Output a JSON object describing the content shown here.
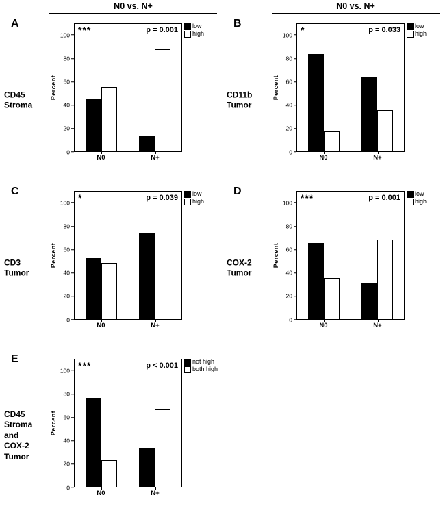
{
  "figure": {
    "column_titles": [
      "N0 vs. N+",
      "N0 vs. N+"
    ]
  },
  "chart_data": [
    {
      "type": "bar",
      "panel_label": "A",
      "row_label": "CD45\nStroma",
      "significance": "***",
      "p_value": "p = 0.001",
      "ylabel": "Percent",
      "ylim": [
        0,
        110
      ],
      "yticks": [
        0,
        20,
        40,
        60,
        80,
        100
      ],
      "categories": [
        "N0",
        "N+"
      ],
      "series": [
        {
          "name": "low",
          "color": "#000000",
          "values": [
            45,
            13
          ]
        },
        {
          "name": "high",
          "color": "#ffffff",
          "values": [
            55,
            87
          ]
        }
      ],
      "legend_position": "right-top",
      "grid": false
    },
    {
      "type": "bar",
      "panel_label": "B",
      "row_label": "CD11b\nTumor",
      "significance": "*",
      "p_value": "p = 0.033",
      "ylabel": "Percent",
      "ylim": [
        0,
        110
      ],
      "yticks": [
        0,
        20,
        40,
        60,
        80,
        100
      ],
      "categories": [
        "N0",
        "N+"
      ],
      "series": [
        {
          "name": "low",
          "color": "#000000",
          "values": [
            83,
            64
          ]
        },
        {
          "name": "high",
          "color": "#ffffff",
          "values": [
            17,
            35
          ]
        }
      ],
      "legend_position": "right-top",
      "grid": false
    },
    {
      "type": "bar",
      "panel_label": "C",
      "row_label": "CD3\nTumor",
      "significance": "*",
      "p_value": "p = 0.039",
      "ylabel": "Percent",
      "ylim": [
        0,
        110
      ],
      "yticks": [
        0,
        20,
        40,
        60,
        80,
        100
      ],
      "categories": [
        "N0",
        "N+"
      ],
      "series": [
        {
          "name": "low",
          "color": "#000000",
          "values": [
            52,
            73
          ]
        },
        {
          "name": "high",
          "color": "#ffffff",
          "values": [
            48,
            27
          ]
        }
      ],
      "legend_position": "right-top",
      "grid": false
    },
    {
      "type": "bar",
      "panel_label": "D",
      "row_label": "COX-2\nTumor",
      "significance": "***",
      "p_value": "p = 0.001",
      "ylabel": "Percent",
      "ylim": [
        0,
        110
      ],
      "yticks": [
        0,
        20,
        40,
        60,
        80,
        100
      ],
      "categories": [
        "N0",
        "N+"
      ],
      "series": [
        {
          "name": "low",
          "color": "#000000",
          "values": [
            65,
            31
          ]
        },
        {
          "name": "high",
          "color": "#ffffff",
          "values": [
            35,
            68
          ]
        }
      ],
      "legend_position": "right-top",
      "grid": false
    },
    {
      "type": "bar",
      "panel_label": "E",
      "row_label": "CD45\nStroma\nand\nCOX-2\nTumor",
      "significance": "***",
      "p_value": "p < 0.001",
      "ylabel": "Percent",
      "ylim": [
        0,
        110
      ],
      "yticks": [
        0,
        20,
        40,
        60,
        80,
        100
      ],
      "categories": [
        "N0",
        "N+"
      ],
      "series": [
        {
          "name": "not high",
          "color": "#000000",
          "values": [
            76,
            33
          ]
        },
        {
          "name": "both high",
          "color": "#ffffff",
          "values": [
            23,
            66
          ]
        }
      ],
      "legend_position": "right-top",
      "grid": false
    }
  ]
}
